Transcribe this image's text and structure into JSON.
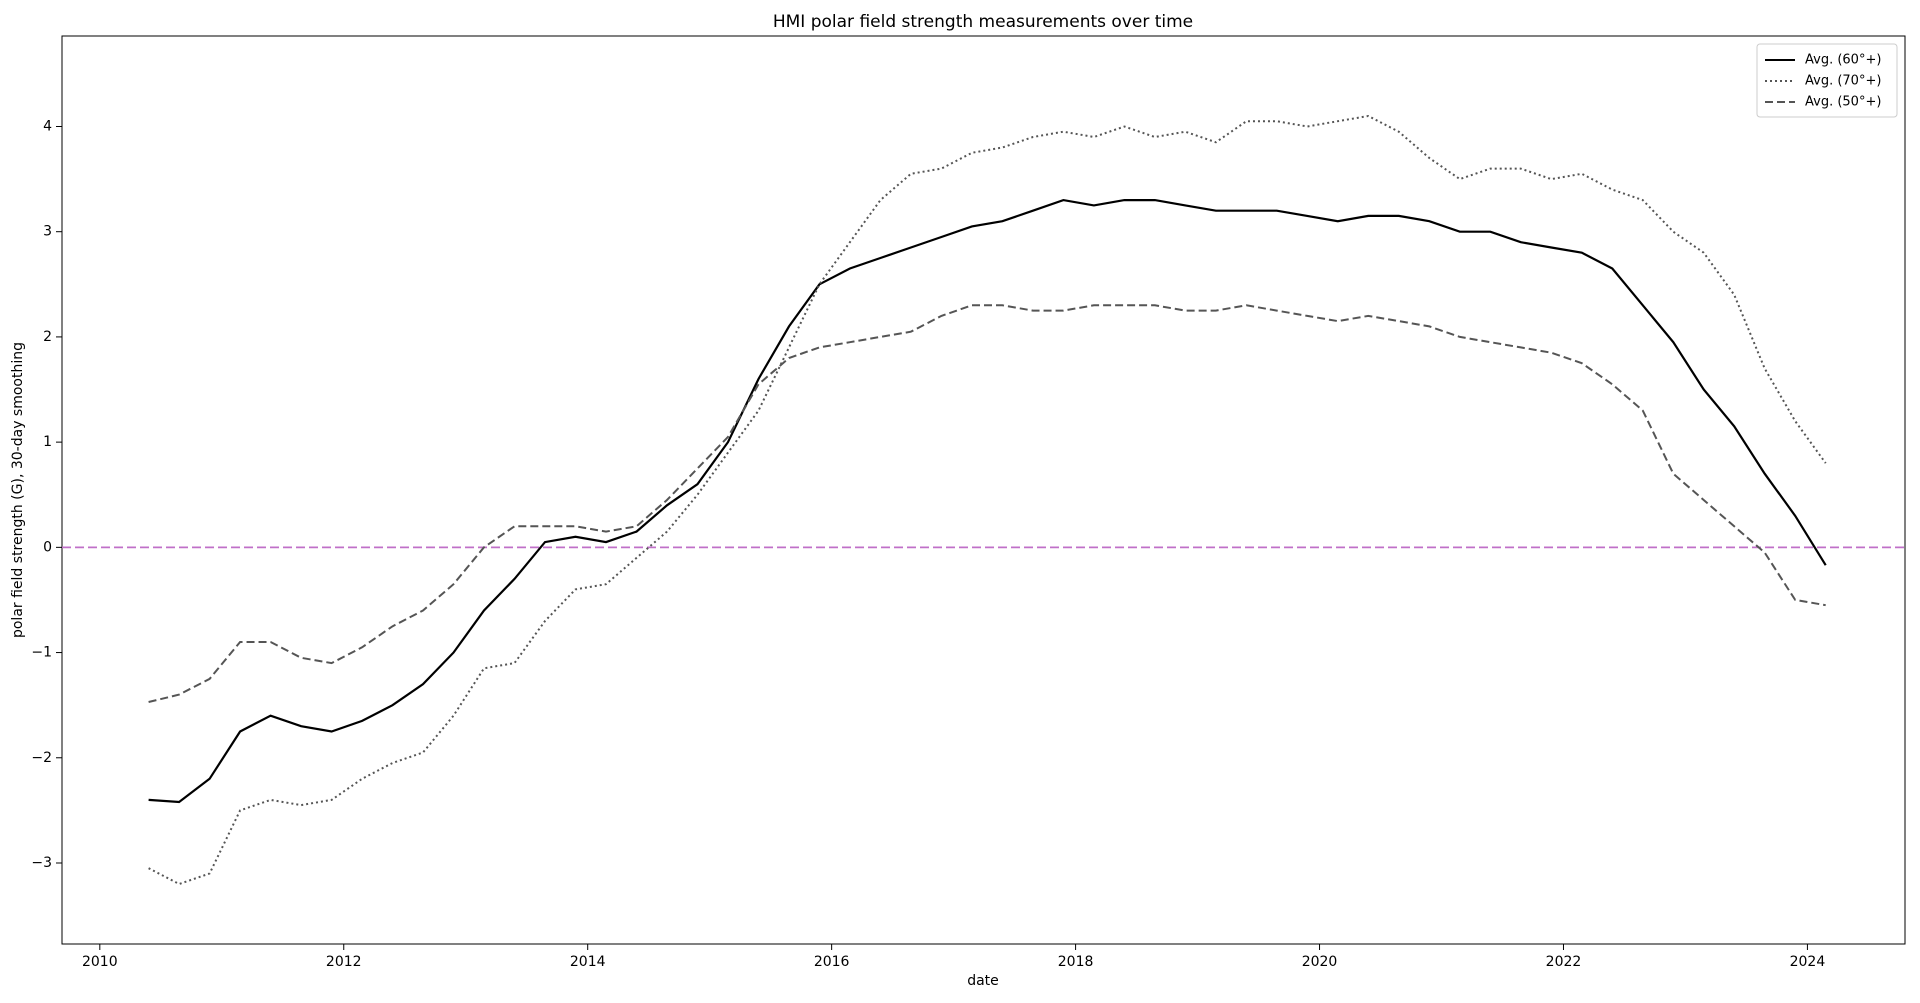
{
  "chart_data": {
    "type": "line",
    "title": "HMI polar field strength measurements over time",
    "x_label": "date",
    "y_label": "polar field strength (G), 30-day smoothing",
    "x": [
      2010.4,
      2010.65,
      2010.9,
      2011.15,
      2011.4,
      2011.65,
      2011.9,
      2012.15,
      2012.4,
      2012.65,
      2012.9,
      2013.15,
      2013.4,
      2013.65,
      2013.9,
      2014.15,
      2014.4,
      2014.65,
      2014.9,
      2015.15,
      2015.4,
      2015.65,
      2015.9,
      2016.15,
      2016.4,
      2016.65,
      2016.9,
      2017.15,
      2017.4,
      2017.65,
      2017.9,
      2018.15,
      2018.4,
      2018.65,
      2018.9,
      2019.15,
      2019.4,
      2019.65,
      2019.9,
      2020.15,
      2020.4,
      2020.65,
      2020.9,
      2021.15,
      2021.4,
      2021.65,
      2021.9,
      2022.15,
      2022.4,
      2022.65,
      2022.9,
      2023.15,
      2023.4,
      2023.65,
      2023.9,
      2024.15
    ],
    "series": [
      {
        "name": "Avg. (60°+)",
        "color": "#000000",
        "dash": "solid",
        "values": [
          -2.4,
          -2.42,
          -2.2,
          -1.75,
          -1.6,
          -1.7,
          -1.75,
          -1.65,
          -1.5,
          -1.3,
          -1.0,
          -0.6,
          -0.3,
          0.05,
          0.1,
          0.05,
          0.15,
          0.4,
          0.6,
          1.0,
          1.6,
          2.1,
          2.5,
          2.65,
          2.75,
          2.85,
          2.95,
          3.05,
          3.1,
          3.2,
          3.3,
          3.25,
          3.3,
          3.3,
          3.25,
          3.2,
          3.2,
          3.2,
          3.15,
          3.1,
          3.15,
          3.15,
          3.1,
          3.0,
          3.0,
          2.9,
          2.85,
          2.8,
          2.65,
          2.3,
          1.95,
          1.5,
          1.15,
          0.7,
          0.3,
          -0.17
        ]
      },
      {
        "name": "Avg. (70°+)",
        "color": "#555555",
        "dash": "dotted",
        "values": [
          -3.05,
          -3.2,
          -3.1,
          -2.5,
          -2.4,
          -2.45,
          -2.4,
          -2.2,
          -2.05,
          -1.95,
          -1.6,
          -1.15,
          -1.1,
          -0.7,
          -0.4,
          -0.35,
          -0.1,
          0.15,
          0.5,
          0.9,
          1.3,
          1.9,
          2.5,
          2.9,
          3.3,
          3.55,
          3.6,
          3.75,
          3.8,
          3.9,
          3.95,
          3.9,
          4.0,
          3.9,
          3.95,
          3.85,
          4.05,
          4.05,
          4.0,
          4.05,
          4.1,
          3.95,
          3.7,
          3.5,
          3.6,
          3.6,
          3.5,
          3.55,
          3.4,
          3.3,
          3.0,
          2.8,
          2.4,
          1.7,
          1.2,
          0.8
        ]
      },
      {
        "name": "Avg. (50°+)",
        "color": "#555555",
        "dash": "dashed",
        "values": [
          -1.47,
          -1.4,
          -1.25,
          -0.9,
          -0.9,
          -1.05,
          -1.1,
          -0.95,
          -0.75,
          -0.6,
          -0.35,
          0.0,
          0.2,
          0.2,
          0.2,
          0.15,
          0.2,
          0.45,
          0.75,
          1.05,
          1.55,
          1.8,
          1.9,
          1.95,
          2.0,
          2.05,
          2.2,
          2.3,
          2.3,
          2.25,
          2.25,
          2.3,
          2.3,
          2.3,
          2.25,
          2.25,
          2.3,
          2.25,
          2.2,
          2.15,
          2.2,
          2.15,
          2.1,
          2.0,
          1.95,
          1.9,
          1.85,
          1.75,
          1.55,
          1.3,
          0.7,
          0.45,
          0.2,
          -0.05,
          -0.5,
          -0.55
        ]
      }
    ],
    "hline": {
      "y": 0,
      "color": "#c070c8"
    },
    "xlim": [
      2009.69,
      2024.8
    ],
    "xticks": [
      2010,
      2012,
      2014,
      2016,
      2018,
      2020,
      2022,
      2024
    ],
    "ylim": [
      -3.77,
      4.86
    ],
    "yticks": [
      -3,
      -2,
      -1,
      0,
      1,
      2,
      3,
      4
    ],
    "legend": "upper right"
  }
}
